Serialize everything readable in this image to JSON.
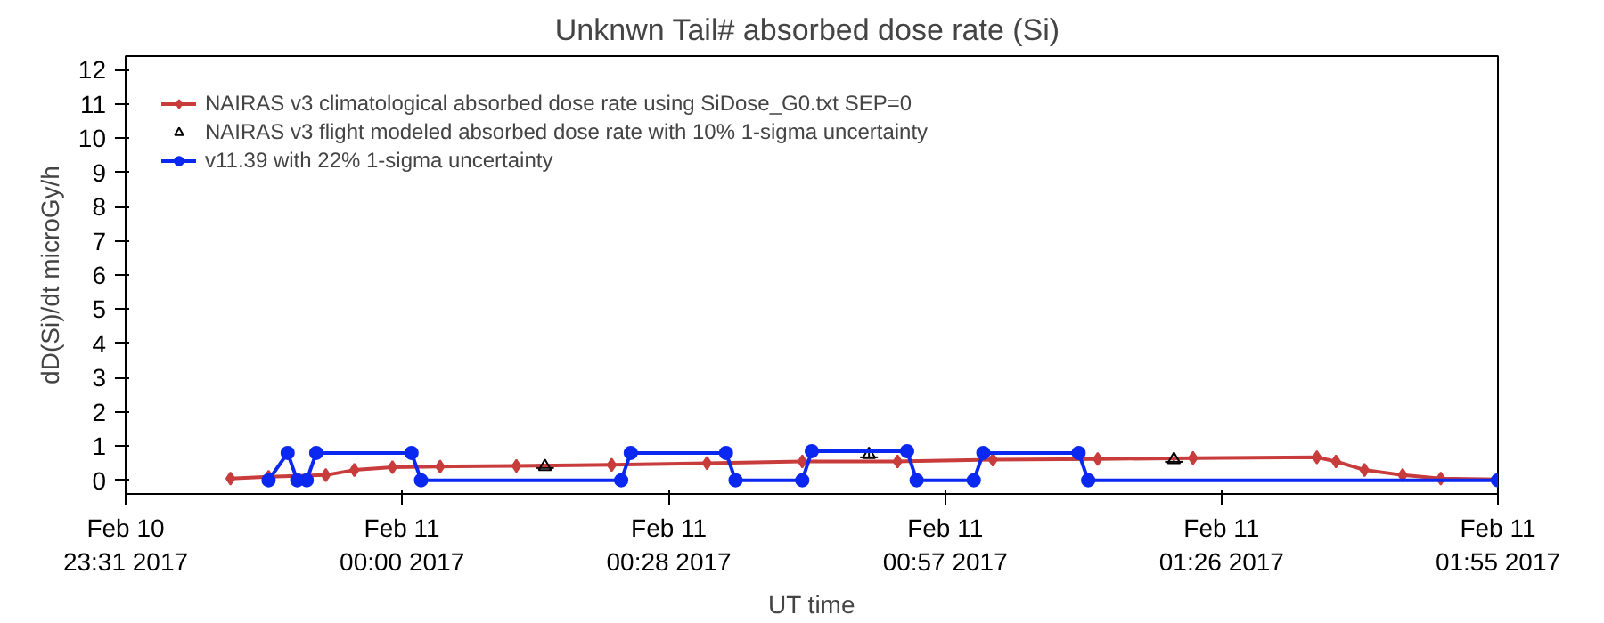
{
  "chart_data": {
    "type": "line",
    "title": "Unknwn Tail#  absorbed dose rate (Si)",
    "xlabel": "UT time",
    "ylabel": "dD(Si)/dt microGy/h",
    "xlim": [
      "2017-02-10T23:31",
      "2017-02-11T01:55"
    ],
    "xticks": [
      {
        "value": "2017-02-10T23:31",
        "label": "Feb 10\n23:31 2017"
      },
      {
        "value": "2017-02-11T00:00",
        "label": "Feb 11\n00:00 2017"
      },
      {
        "value": "2017-02-11T00:28",
        "label": "Feb 11\n00:28 2017"
      },
      {
        "value": "2017-02-11T00:57",
        "label": "Feb 11\n00:57 2017"
      },
      {
        "value": "2017-02-11T01:26",
        "label": "Feb 11\n01:26 2017"
      },
      {
        "value": "2017-02-11T01:55",
        "label": "Feb 11\n01:55 2017"
      }
    ],
    "ylim": [
      -0.4,
      12.4
    ],
    "yticks": [
      0,
      1,
      2,
      3,
      4,
      5,
      6,
      7,
      8,
      9,
      10,
      11,
      12
    ],
    "grid": false,
    "legend": "top left",
    "series": [
      {
        "name": "NAIRAS v3 climatological absorbed dose rate using SiDose_G0.txt SEP=0",
        "color": "#c83c3c",
        "marker": "diamond",
        "x": [
          "2017-02-10T23:42",
          "2017-02-10T23:46",
          "2017-02-10T23:52",
          "2017-02-10T23:55",
          "2017-02-10T23:59",
          "2017-02-11T00:04",
          "2017-02-11T00:12",
          "2017-02-11T00:22",
          "2017-02-11T00:32",
          "2017-02-11T00:42",
          "2017-02-11T00:52",
          "2017-02-11T01:02",
          "2017-02-11T01:13",
          "2017-02-11T01:23",
          "2017-02-11T01:36",
          "2017-02-11T01:38",
          "2017-02-11T01:41",
          "2017-02-11T01:45",
          "2017-02-11T01:49",
          "2017-02-11T01:55"
        ],
        "values": [
          0.05,
          0.1,
          0.15,
          0.3,
          0.38,
          0.4,
          0.42,
          0.45,
          0.5,
          0.55,
          0.55,
          0.6,
          0.62,
          0.65,
          0.67,
          0.55,
          0.3,
          0.15,
          0.05,
          0.02
        ]
      },
      {
        "name": "NAIRAS v3 flight modeled absorbed dose rate with 10% 1-sigma uncertainty",
        "color": "#000000",
        "type": "scatter",
        "marker": "triangle",
        "x": [
          "2017-02-11T00:15",
          "2017-02-11T00:49",
          "2017-02-11T01:21"
        ],
        "values": [
          0.4,
          0.75,
          0.6
        ],
        "errors": [
          0.04,
          0.08,
          0.06
        ]
      },
      {
        "name": "v11.39 with 22% 1-sigma uncertainty",
        "color": "#0a28f0",
        "marker": "circle",
        "x": [
          "2017-02-10T23:46",
          "2017-02-10T23:48",
          "2017-02-10T23:49",
          "2017-02-10T23:50",
          "2017-02-10T23:51",
          "2017-02-11T00:01",
          "2017-02-11T00:02",
          "2017-02-11T00:23",
          "2017-02-11T00:24",
          "2017-02-11T00:34",
          "2017-02-11T00:35",
          "2017-02-11T00:42",
          "2017-02-11T00:43",
          "2017-02-11T00:53",
          "2017-02-11T00:54",
          "2017-02-11T01:00",
          "2017-02-11T01:01",
          "2017-02-11T01:11",
          "2017-02-11T01:12",
          "2017-02-11T01:55"
        ],
        "values": [
          0,
          0.8,
          0,
          0,
          0.8,
          0.8,
          0,
          0,
          0.8,
          0.8,
          0,
          0,
          0.85,
          0.85,
          0,
          0,
          0.8,
          0.8,
          0,
          0
        ]
      }
    ]
  }
}
